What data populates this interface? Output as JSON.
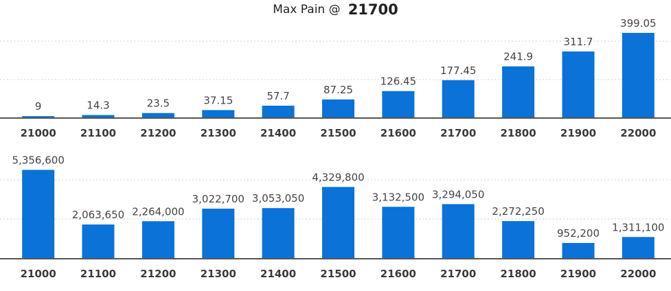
{
  "header": {
    "prefix": "Max Pain @",
    "value": "21700"
  },
  "colors": {
    "bar": "#0b72d8",
    "axis": "#555555",
    "grid": "#cfcfcf"
  },
  "chart_data": [
    {
      "type": "bar",
      "categories": [
        "21000",
        "21100",
        "21200",
        "21300",
        "21400",
        "21500",
        "21600",
        "21700",
        "21800",
        "21900",
        "22000"
      ],
      "values": [
        9,
        14.3,
        23.5,
        37.15,
        57.7,
        87.25,
        126.45,
        177.45,
        241.9,
        311.7,
        399.05
      ],
      "labels": [
        "9",
        "14.3",
        "23.5",
        "37.15",
        "57.7",
        "87.25",
        "126.45",
        "177.45",
        "241.9",
        "311.7",
        "399.05"
      ],
      "title": "",
      "xlabel": "",
      "ylabel": "",
      "ylim": [
        0,
        450
      ],
      "grid": true
    },
    {
      "type": "bar",
      "categories": [
        "21000",
        "21100",
        "21200",
        "21300",
        "21400",
        "21500",
        "21600",
        "21700",
        "21800",
        "21900",
        "22000"
      ],
      "values": [
        5356600,
        2063650,
        2264000,
        3022700,
        3053050,
        4329800,
        3132500,
        3294050,
        2272250,
        952200,
        1311100
      ],
      "labels": [
        "5,356,600",
        "2,063,650",
        "2,264,000",
        "3,022,700",
        "3,053,050",
        "4,329,800",
        "3,132,500",
        "3,294,050",
        "2,272,250",
        "952,200",
        "1,311,100"
      ],
      "title": "",
      "xlabel": "",
      "ylabel": "",
      "ylim": [
        0,
        6000000
      ],
      "grid": true
    }
  ]
}
